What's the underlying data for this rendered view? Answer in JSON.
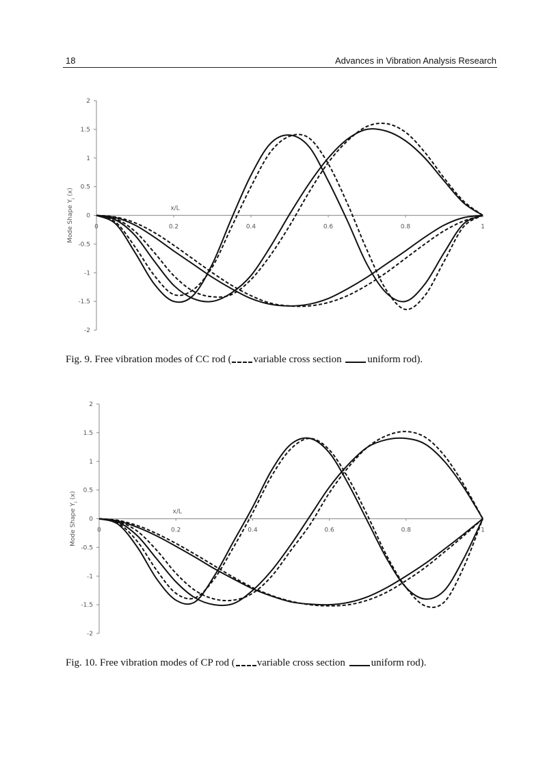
{
  "header": {
    "page_number": "18",
    "running_title": "Advances in Vibration Analysis Research"
  },
  "figures": [
    {
      "caption": {
        "prefix": "Fig. 9. Free vibration modes of CC rod (",
        "dashed_label": "variable cross section ",
        "solid_label": "uniform rod)."
      }
    },
    {
      "caption": {
        "prefix": "Fig. 10. Free vibration modes of CP rod (",
        "dashed_label": "variable cross section ",
        "solid_label": "uniform rod)."
      }
    }
  ],
  "chart_data": [
    {
      "type": "line",
      "title": "",
      "xlabel": "x/L",
      "ylabel": "Mode Shape Y",
      "ylabel_sub": "i",
      "ylabel_suffix": " (x)",
      "xlim": [
        0,
        1
      ],
      "ylim": [
        -2,
        2
      ],
      "xticks": [
        "0",
        "0.2",
        "0.4",
        "0.6",
        "0.8",
        "1"
      ],
      "yticks": [
        "2",
        "1.5",
        "1",
        "0.5",
        "0",
        "-0.5",
        "-1",
        "-1.5",
        "-2"
      ],
      "grid": false,
      "line_color": "#111111",
      "x": [
        0,
        0.05,
        0.1,
        0.15,
        0.2,
        0.25,
        0.3,
        0.35,
        0.4,
        0.45,
        0.5,
        0.55,
        0.6,
        0.65,
        0.7,
        0.75,
        0.8,
        0.85,
        0.9,
        0.95,
        1
      ],
      "series": [
        {
          "style": "solid",
          "values": [
            0,
            -0.04,
            -0.17,
            -0.38,
            -0.62,
            -0.85,
            -1.08,
            -1.28,
            -1.45,
            -1.55,
            -1.58,
            -1.55,
            -1.45,
            -1.28,
            -1.08,
            -0.85,
            -0.62,
            -0.38,
            -0.17,
            -0.04,
            0
          ]
        },
        {
          "style": "dashed",
          "values": [
            0,
            -0.03,
            -0.13,
            -0.3,
            -0.52,
            -0.76,
            -1.0,
            -1.22,
            -1.4,
            -1.53,
            -1.58,
            -1.58,
            -1.52,
            -1.4,
            -1.22,
            -1.0,
            -0.75,
            -0.5,
            -0.27,
            -0.1,
            0
          ]
        },
        {
          "style": "solid",
          "values": [
            0,
            -0.08,
            -0.35,
            -0.8,
            -1.22,
            -1.45,
            -1.5,
            -1.35,
            -1.05,
            -0.55,
            0.02,
            0.55,
            1.0,
            1.33,
            1.5,
            1.47,
            1.3,
            1.0,
            0.6,
            0.22,
            0
          ]
        },
        {
          "style": "dashed",
          "values": [
            0,
            -0.06,
            -0.28,
            -0.65,
            -1.05,
            -1.32,
            -1.42,
            -1.38,
            -1.12,
            -0.7,
            -0.18,
            0.4,
            0.92,
            1.3,
            1.55,
            1.6,
            1.45,
            1.1,
            0.65,
            0.25,
            0
          ]
        },
        {
          "style": "solid",
          "values": [
            0,
            -0.15,
            -0.65,
            -1.2,
            -1.5,
            -1.4,
            -0.85,
            -0.05,
            0.7,
            1.25,
            1.4,
            1.2,
            0.6,
            -0.1,
            -0.85,
            -1.35,
            -1.5,
            -1.2,
            -0.65,
            -0.15,
            0
          ]
        },
        {
          "style": "dashed",
          "values": [
            0,
            -0.12,
            -0.55,
            -1.05,
            -1.38,
            -1.3,
            -0.9,
            -0.2,
            0.5,
            1.1,
            1.38,
            1.35,
            0.9,
            0.2,
            -0.6,
            -1.3,
            -1.64,
            -1.4,
            -0.8,
            -0.2,
            0
          ]
        }
      ]
    },
    {
      "type": "line",
      "title": "",
      "xlabel": "x/L",
      "ylabel": "Mode Shape Y",
      "ylabel_sub": "i",
      "ylabel_suffix": " (x)",
      "xlim": [
        0,
        1
      ],
      "ylim": [
        -2,
        2
      ],
      "xticks": [
        "0",
        "0.2",
        "0.4",
        "0.6",
        "0.8",
        "1"
      ],
      "yticks": [
        "2",
        "1.5",
        "1",
        "0.5",
        "0",
        "-0.5",
        "-1",
        "-1.5",
        "-2"
      ],
      "grid": false,
      "line_color": "#111111",
      "x": [
        0,
        0.05,
        0.1,
        0.15,
        0.2,
        0.25,
        0.3,
        0.35,
        0.4,
        0.45,
        0.5,
        0.55,
        0.6,
        0.65,
        0.7,
        0.75,
        0.8,
        0.85,
        0.9,
        0.95,
        1
      ],
      "series": [
        {
          "style": "solid",
          "values": [
            0,
            -0.04,
            -0.15,
            -0.3,
            -0.48,
            -0.67,
            -0.87,
            -1.05,
            -1.22,
            -1.35,
            -1.45,
            -1.49,
            -1.5,
            -1.46,
            -1.36,
            -1.2,
            -1.0,
            -0.78,
            -0.53,
            -0.27,
            0
          ]
        },
        {
          "style": "dashed",
          "values": [
            0,
            -0.03,
            -0.12,
            -0.26,
            -0.43,
            -0.62,
            -0.82,
            -1.02,
            -1.2,
            -1.34,
            -1.44,
            -1.5,
            -1.52,
            -1.5,
            -1.42,
            -1.28,
            -1.08,
            -0.85,
            -0.58,
            -0.3,
            0
          ]
        },
        {
          "style": "solid",
          "values": [
            0,
            -0.06,
            -0.3,
            -0.7,
            -1.1,
            -1.38,
            -1.5,
            -1.48,
            -1.25,
            -0.9,
            -0.45,
            0.05,
            0.55,
            0.95,
            1.25,
            1.38,
            1.4,
            1.3,
            1.0,
            0.55,
            0
          ]
        },
        {
          "style": "dashed",
          "values": [
            0,
            -0.05,
            -0.22,
            -0.55,
            -0.95,
            -1.25,
            -1.4,
            -1.42,
            -1.3,
            -1.0,
            -0.55,
            -0.1,
            0.45,
            0.9,
            1.25,
            1.45,
            1.52,
            1.42,
            1.1,
            0.6,
            0
          ]
        },
        {
          "style": "solid",
          "values": [
            0,
            -0.1,
            -0.5,
            -1.05,
            -1.42,
            -1.45,
            -1.0,
            -0.4,
            0.2,
            0.85,
            1.3,
            1.4,
            1.15,
            0.6,
            -0.05,
            -0.7,
            -1.2,
            -1.4,
            -1.25,
            -0.7,
            0
          ]
        },
        {
          "style": "dashed",
          "values": [
            0,
            -0.08,
            -0.4,
            -0.9,
            -1.3,
            -1.38,
            -1.05,
            -0.5,
            0.1,
            0.75,
            1.22,
            1.4,
            1.2,
            0.7,
            0.05,
            -0.65,
            -1.2,
            -1.52,
            -1.45,
            -0.85,
            0
          ]
        }
      ]
    }
  ]
}
